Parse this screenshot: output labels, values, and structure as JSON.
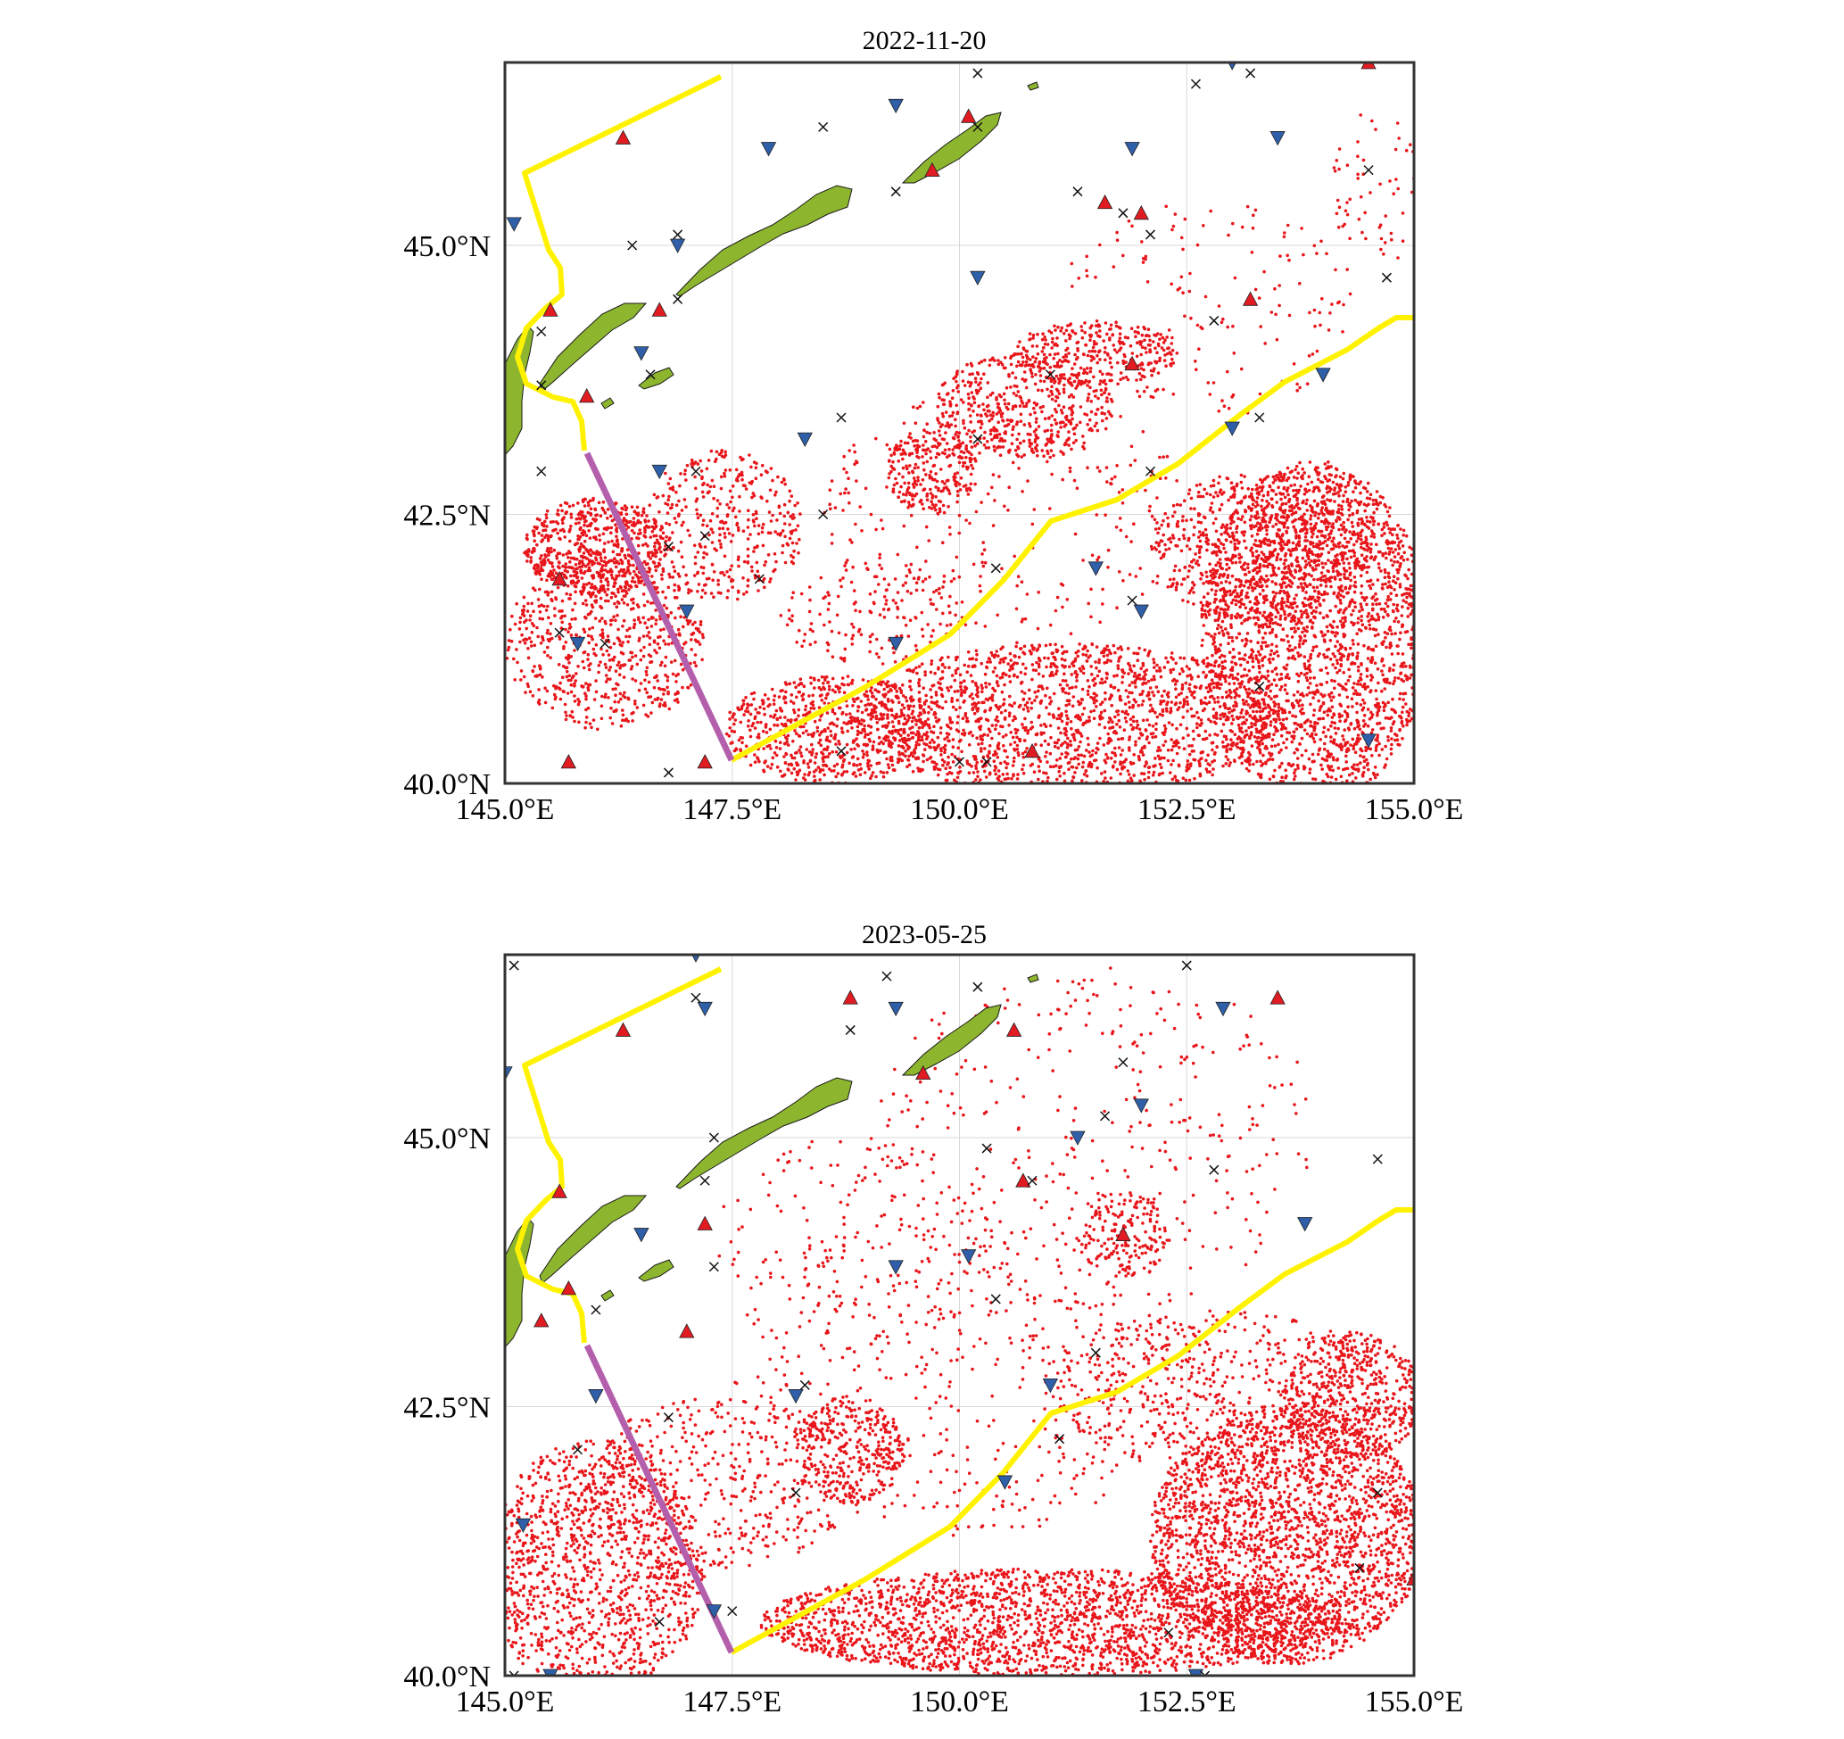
{
  "colors": {
    "land": "#8db62e",
    "particles": "#e8161b",
    "yellow_line": "#fff200",
    "purple_line": "#b45fac",
    "triangle_up": "#e11b22",
    "triangle_down": "#2e5fa8",
    "cross": "#111111",
    "frame": "#333333",
    "grid": "#d9d9d9"
  },
  "marker_legend": {
    "up_triangle": "red triangle",
    "down_triangle": "blue triangle",
    "cross": "x"
  },
  "axis": {
    "lon_range": [
      145.0,
      155.0
    ],
    "lat_range": [
      40.0,
      46.7
    ],
    "x_ticks": [
      145.0,
      147.5,
      150.0,
      152.5,
      155.0
    ],
    "y_ticks": [
      40.0,
      42.5,
      45.0
    ],
    "x_tick_labels": [
      "145.0°E",
      "147.5°E",
      "150.0°E",
      "152.5°E",
      "155.0°E"
    ],
    "y_tick_labels": [
      "40.0°N",
      "42.5°N",
      "45.0°N"
    ],
    "grid": true
  },
  "panels": [
    {
      "title": "2022-11-20",
      "up_triangles": [
        [
          146.3,
          46.0
        ],
        [
          149.7,
          45.7
        ],
        [
          150.1,
          46.2
        ],
        [
          151.6,
          45.4
        ],
        [
          152.0,
          45.3
        ],
        [
          153.2,
          44.5
        ],
        [
          154.5,
          46.7
        ],
        [
          145.5,
          44.4
        ],
        [
          146.7,
          44.4
        ],
        [
          151.9,
          43.9
        ],
        [
          145.9,
          43.6
        ],
        [
          145.6,
          41.9
        ],
        [
          145.7,
          40.2
        ],
        [
          147.2,
          40.2
        ],
        [
          150.8,
          40.3
        ]
      ],
      "down_triangles": [
        [
          145.1,
          45.2
        ],
        [
          146.9,
          45.0
        ],
        [
          147.9,
          45.9
        ],
        [
          149.3,
          46.3
        ],
        [
          150.2,
          44.7
        ],
        [
          151.9,
          45.9
        ],
        [
          153.0,
          46.7
        ],
        [
          153.5,
          46.0
        ],
        [
          146.5,
          44.0
        ],
        [
          148.3,
          43.2
        ],
        [
          153.0,
          43.3
        ],
        [
          154.0,
          43.8
        ],
        [
          146.7,
          42.9
        ],
        [
          147.0,
          41.6
        ],
        [
          149.3,
          41.3
        ],
        [
          151.5,
          42.0
        ],
        [
          152.0,
          41.6
        ],
        [
          145.8,
          41.3
        ],
        [
          154.5,
          40.4
        ]
      ],
      "crosses": [
        [
          150.2,
          46.6
        ],
        [
          153.2,
          46.6
        ],
        [
          148.5,
          46.1
        ],
        [
          150.2,
          46.1
        ],
        [
          152.6,
          46.5
        ],
        [
          149.3,
          45.5
        ],
        [
          151.3,
          45.5
        ],
        [
          151.8,
          45.3
        ],
        [
          152.1,
          45.1
        ],
        [
          146.9,
          45.1
        ],
        [
          146.4,
          45.0
        ],
        [
          154.5,
          45.7
        ],
        [
          154.7,
          44.7
        ],
        [
          146.9,
          44.5
        ],
        [
          145.4,
          44.2
        ],
        [
          146.6,
          43.8
        ],
        [
          151.0,
          43.8
        ],
        [
          152.8,
          44.3
        ],
        [
          153.3,
          43.4
        ],
        [
          145.4,
          43.7
        ],
        [
          148.7,
          43.4
        ],
        [
          150.2,
          43.2
        ],
        [
          145.4,
          42.9
        ],
        [
          147.1,
          42.9
        ],
        [
          152.1,
          42.9
        ],
        [
          148.5,
          42.5
        ],
        [
          146.8,
          42.2
        ],
        [
          147.2,
          42.3
        ],
        [
          147.8,
          41.9
        ],
        [
          150.4,
          42.0
        ],
        [
          151.9,
          41.7
        ],
        [
          145.6,
          41.4
        ],
        [
          146.1,
          41.3
        ],
        [
          153.3,
          40.9
        ],
        [
          148.7,
          40.3
        ],
        [
          150.0,
          40.2
        ],
        [
          150.3,
          40.2
        ],
        [
          146.8,
          40.1
        ]
      ],
      "particle_regions": [
        {
          "lon": 151.2,
          "lat": 40.6,
          "rlon": 2.4,
          "rlat": 0.7,
          "n": 1800
        },
        {
          "lon": 153.9,
          "lat": 41.4,
          "rlon": 1.25,
          "rlat": 1.6,
          "n": 2400
        },
        {
          "lon": 153.3,
          "lat": 42.2,
          "rlon": 1.2,
          "rlat": 0.7,
          "n": 700
        },
        {
          "lon": 148.6,
          "lat": 40.5,
          "rlon": 1.2,
          "rlat": 0.5,
          "n": 700
        },
        {
          "lon": 146.1,
          "lat": 41.3,
          "rlon": 1.1,
          "rlat": 0.8,
          "n": 700
        },
        {
          "lon": 146.0,
          "lat": 42.2,
          "rlon": 0.8,
          "rlat": 0.45,
          "n": 600
        },
        {
          "lon": 147.4,
          "lat": 42.4,
          "rlon": 0.9,
          "rlat": 0.7,
          "n": 400
        },
        {
          "lon": 150.7,
          "lat": 43.5,
          "rlon": 1.0,
          "rlat": 0.5,
          "n": 500
        },
        {
          "lon": 151.5,
          "lat": 44.0,
          "rlon": 0.9,
          "rlat": 0.3,
          "n": 300
        },
        {
          "lon": 149.7,
          "lat": 42.9,
          "rlon": 0.5,
          "rlat": 0.4,
          "n": 250
        },
        {
          "lon": 150.5,
          "lat": 42.5,
          "rlon": 2.0,
          "rlat": 1.2,
          "n": 300
        },
        {
          "lon": 149.0,
          "lat": 41.6,
          "rlon": 1.0,
          "rlat": 0.5,
          "n": 150
        },
        {
          "lon": 152.7,
          "lat": 44.4,
          "rlon": 1.7,
          "rlat": 1.0,
          "n": 150
        },
        {
          "lon": 154.6,
          "lat": 45.5,
          "rlon": 0.5,
          "rlat": 0.8,
          "n": 60
        }
      ]
    },
    {
      "title": "2023-05-25",
      "up_triangles": [
        [
          146.3,
          46.0
        ],
        [
          148.8,
          46.3
        ],
        [
          150.6,
          46.0
        ],
        [
          149.6,
          45.6
        ],
        [
          145.6,
          44.5
        ],
        [
          147.2,
          44.2
        ],
        [
          150.7,
          44.6
        ],
        [
          151.8,
          44.1
        ],
        [
          153.5,
          46.3
        ],
        [
          145.7,
          43.6
        ],
        [
          147.0,
          43.2
        ],
        [
          145.4,
          43.3
        ],
        [
          155.0,
          40.9
        ]
      ],
      "down_triangles": [
        [
          147.1,
          46.7
        ],
        [
          147.2,
          46.2
        ],
        [
          149.3,
          46.2
        ],
        [
          152.9,
          46.2
        ],
        [
          145.0,
          45.6
        ],
        [
          151.3,
          45.0
        ],
        [
          152.0,
          45.3
        ],
        [
          146.5,
          44.1
        ],
        [
          149.3,
          43.8
        ],
        [
          150.1,
          43.9
        ],
        [
          153.8,
          44.2
        ],
        [
          146.0,
          42.6
        ],
        [
          148.2,
          42.6
        ],
        [
          151.0,
          42.7
        ],
        [
          150.5,
          41.8
        ],
        [
          145.2,
          41.4
        ],
        [
          147.3,
          40.6
        ],
        [
          145.5,
          40.0
        ],
        [
          152.6,
          40.0
        ]
      ],
      "crosses": [
        [
          145.1,
          46.6
        ],
        [
          147.1,
          46.3
        ],
        [
          149.2,
          46.5
        ],
        [
          150.2,
          46.4
        ],
        [
          152.5,
          46.6
        ],
        [
          148.8,
          46.0
        ],
        [
          151.8,
          45.7
        ],
        [
          151.6,
          45.2
        ],
        [
          150.3,
          44.9
        ],
        [
          150.8,
          44.6
        ],
        [
          152.8,
          44.7
        ],
        [
          154.6,
          44.8
        ],
        [
          147.2,
          44.6
        ],
        [
          147.3,
          45.0
        ],
        [
          147.3,
          43.8
        ],
        [
          146.0,
          43.4
        ],
        [
          150.4,
          43.5
        ],
        [
          151.5,
          43.0
        ],
        [
          148.3,
          42.7
        ],
        [
          151.1,
          42.2
        ],
        [
          146.8,
          42.4
        ],
        [
          145.8,
          42.1
        ],
        [
          148.2,
          41.7
        ],
        [
          154.6,
          41.7
        ],
        [
          146.7,
          40.5
        ],
        [
          147.5,
          40.6
        ],
        [
          154.4,
          41.0
        ],
        [
          152.3,
          40.4
        ],
        [
          145.1,
          40.0
        ],
        [
          152.7,
          40.0
        ]
      ],
      "particle_regions": [
        {
          "lon": 151.0,
          "lat": 40.5,
          "rlon": 3.2,
          "rlat": 0.5,
          "n": 2200
        },
        {
          "lon": 153.6,
          "lat": 41.3,
          "rlon": 1.5,
          "rlat": 1.2,
          "n": 2400
        },
        {
          "lon": 154.3,
          "lat": 42.6,
          "rlon": 0.8,
          "rlat": 0.6,
          "n": 500
        },
        {
          "lon": 152.8,
          "lat": 42.7,
          "rlon": 1.9,
          "rlat": 0.7,
          "n": 500
        },
        {
          "lon": 146.0,
          "lat": 41.0,
          "rlon": 1.2,
          "rlat": 1.2,
          "n": 1300
        },
        {
          "lon": 147.4,
          "lat": 41.8,
          "rlon": 1.5,
          "rlat": 0.8,
          "n": 450
        },
        {
          "lon": 148.8,
          "lat": 42.1,
          "rlon": 0.6,
          "rlat": 0.5,
          "n": 300
        },
        {
          "lon": 150.1,
          "lat": 42.8,
          "rlon": 2.6,
          "rlat": 1.5,
          "n": 500
        },
        {
          "lon": 151.8,
          "lat": 44.1,
          "rlon": 0.5,
          "rlat": 0.4,
          "n": 160
        },
        {
          "lon": 151.5,
          "lat": 45.0,
          "rlon": 2.5,
          "rlat": 1.6,
          "n": 350
        },
        {
          "lon": 148.8,
          "lat": 44.0,
          "rlon": 1.6,
          "rlat": 1.0,
          "n": 150
        }
      ]
    }
  ]
}
